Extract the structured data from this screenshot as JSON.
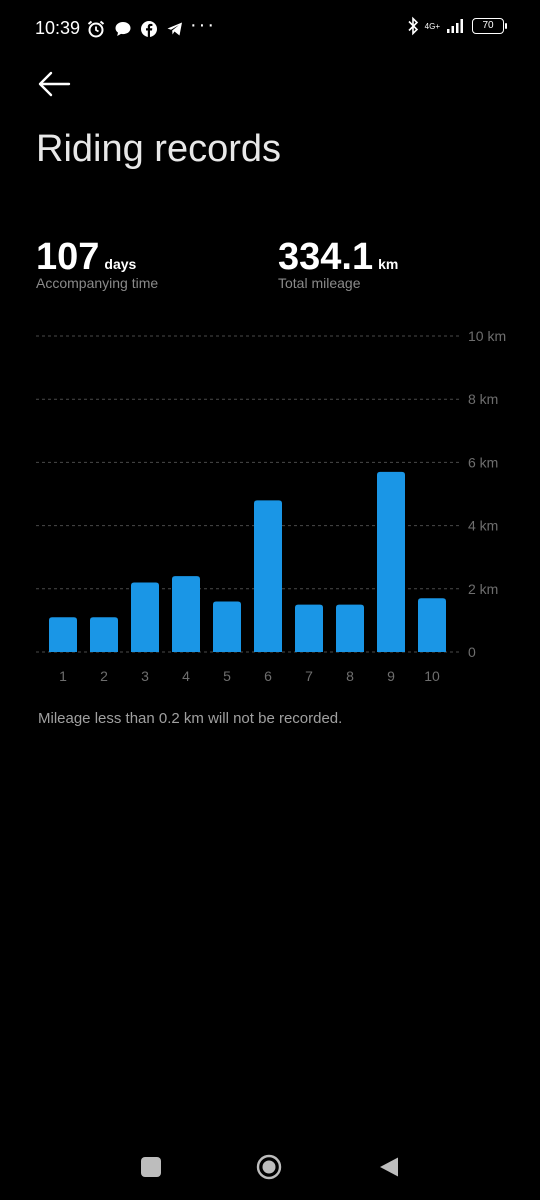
{
  "status_bar": {
    "time": "10:39",
    "network": "4G+",
    "battery": "70",
    "more": "···",
    "icons_left": [
      "alarm-icon",
      "chat-bubble-icon",
      "facebook-icon",
      "telegram-icon"
    ],
    "icons_right": [
      "bluetooth-icon",
      "signal-icon",
      "battery-icon"
    ]
  },
  "header": {
    "back_icon": "back-arrow-icon",
    "title": "Riding records"
  },
  "stats": {
    "days": {
      "value": "107",
      "unit": "days",
      "label": "Accompanying time"
    },
    "mileage": {
      "value": "334.1",
      "unit": "km",
      "label": "Total mileage"
    }
  },
  "chart_data": {
    "type": "bar",
    "categories": [
      "1",
      "2",
      "3",
      "4",
      "5",
      "6",
      "7",
      "8",
      "9",
      "10"
    ],
    "values": [
      1.1,
      1.1,
      2.2,
      2.4,
      1.6,
      4.8,
      1.5,
      1.5,
      5.7,
      1.7
    ],
    "ylim": [
      0,
      10
    ],
    "y_ticks": [
      "0",
      "2 km",
      "4 km",
      "6 km",
      "8 km",
      "10 km"
    ],
    "y_tick_values": [
      0,
      2,
      4,
      6,
      8,
      10
    ],
    "grid": true,
    "bar_color": "#1a96e6"
  },
  "footnote": "Mileage less than 0.2 km will not be recorded.",
  "nav_bar": {
    "icons": [
      "recents-square-icon",
      "home-circle-icon",
      "back-triangle-icon"
    ]
  },
  "colors": {
    "background": "#000000",
    "accent": "#1a96e6",
    "secondary_text": "#8a8a8a",
    "grid": "#4a4a4a"
  }
}
